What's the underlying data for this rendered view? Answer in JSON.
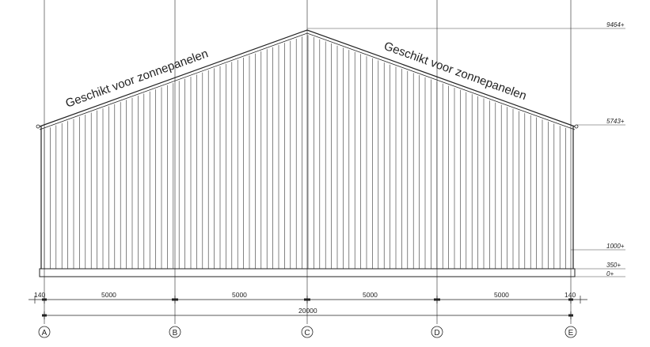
{
  "roof_labels": {
    "left": "Geschikt voor zonnepanelen",
    "right": "Geschikt voor zonnepanelen"
  },
  "levels": [
    {
      "key": "ridge",
      "text": "9464+"
    },
    {
      "key": "eave",
      "text": "5743+"
    },
    {
      "key": "l1000",
      "text": "1000+"
    },
    {
      "key": "l350",
      "text": "350+"
    },
    {
      "key": "l0",
      "text": "0+"
    }
  ],
  "dimensions": {
    "edge_left": "140",
    "bay1": "5000",
    "bay2": "5000",
    "bay3": "5000",
    "bay4": "5000",
    "edge_right": "140",
    "total": "20000"
  },
  "axes": [
    "A",
    "B",
    "C",
    "D",
    "E"
  ],
  "colors": {
    "line": "#222222",
    "paper": "#ffffff"
  }
}
